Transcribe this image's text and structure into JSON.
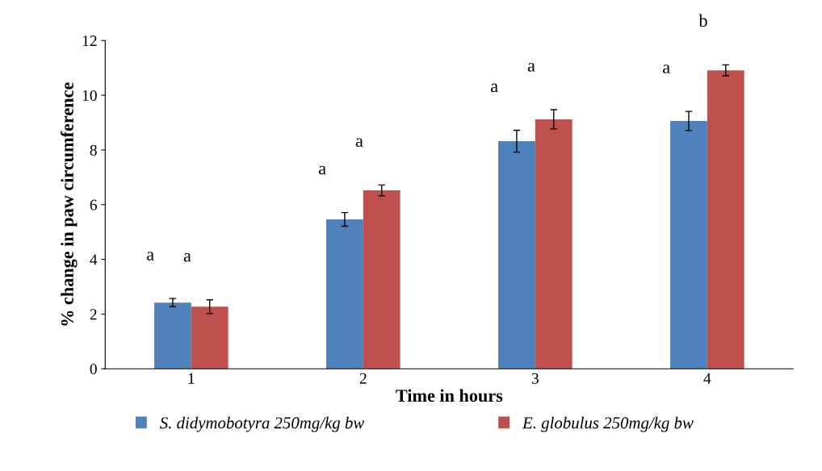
{
  "chart_data": {
    "type": "bar",
    "xlabel": "Time in hours",
    "ylabel": "% change in paw circumference",
    "categories": [
      "1",
      "2",
      "3",
      "4"
    ],
    "series": [
      {
        "name": "S. didymobotyra 250mg/kg bw",
        "color": "#4f81bd",
        "values": [
          2.42,
          5.46,
          8.32,
          9.06
        ],
        "errors": [
          0.15,
          0.25,
          0.4,
          0.35
        ]
      },
      {
        "name": "E. globulus 250mg/kg bw",
        "color": "#c0504d",
        "values": [
          2.27,
          6.52,
          9.12,
          10.91
        ],
        "errors": [
          0.25,
          0.2,
          0.35,
          0.2
        ]
      }
    ],
    "ylim": [
      0,
      12
    ],
    "yticks": [
      0,
      2,
      4,
      6,
      8,
      10,
      12
    ],
    "grid": false,
    "legend": "bottom",
    "annotations": [
      "a",
      "a",
      "a",
      "a",
      "a",
      "a",
      "a",
      "b"
    ]
  }
}
